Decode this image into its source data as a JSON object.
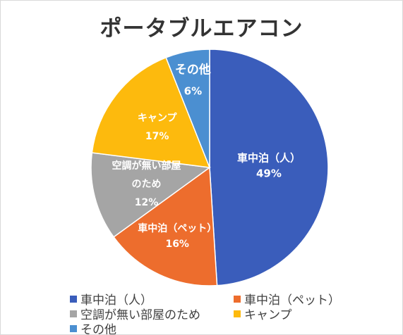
{
  "chart_data": {
    "type": "pie",
    "title": "ポータブルエアコン",
    "slices": [
      {
        "name": "車中泊（人）",
        "value": 49,
        "label": "49%",
        "color": "#3a5dbb"
      },
      {
        "name": "車中泊（ペット）",
        "value": 16,
        "label": "16%",
        "color": "#ed6d2d"
      },
      {
        "name": "空調が無い部屋のため",
        "value": 12,
        "label": "12%",
        "color": "#a5a5a5"
      },
      {
        "name": "キャンプ",
        "value": 17,
        "label": "17%",
        "color": "#fdba0d"
      },
      {
        "name": "その他",
        "value": 6,
        "label": "6%",
        "color": "#4b8fd1"
      }
    ],
    "legend_position": "bottom"
  }
}
